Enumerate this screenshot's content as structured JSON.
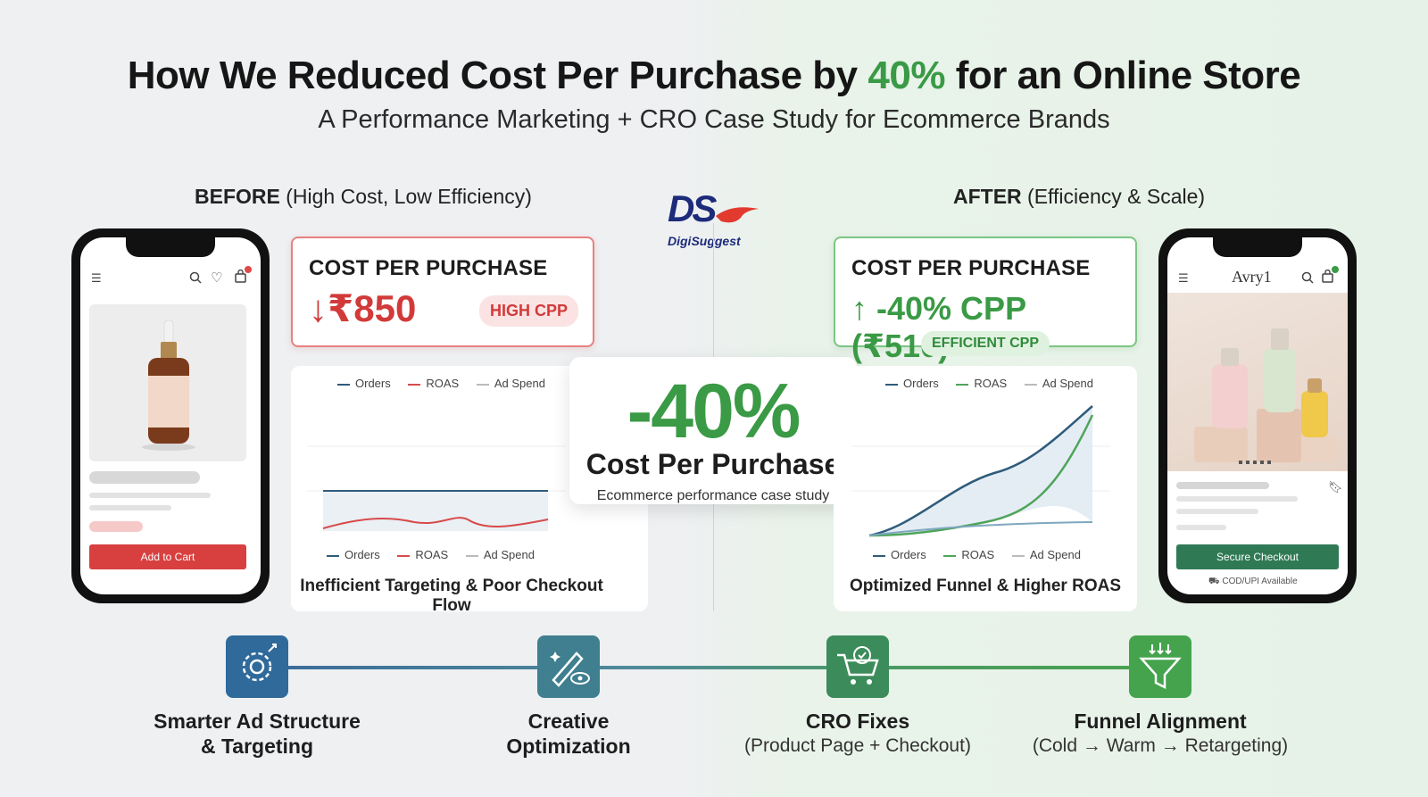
{
  "title": {
    "pre": "How We Reduced Cost Per Purchase by ",
    "highlight": "40%",
    "post": " for an Online Store"
  },
  "subtitle": "A Performance Marketing + CRO Case Study for Ecommerce Brands",
  "logo": {
    "mark": "DS",
    "name": "DigiSuggest"
  },
  "before": {
    "heading_bold": "BEFORE",
    "heading_rest": " (High Cost, Low Efficiency)",
    "cpp_label": "COST PER PURCHASE",
    "cpp_arrow": "↓",
    "cpp_value": "₹850",
    "badge": "HIGH CPP",
    "legend": [
      "Orders",
      "ROAS",
      "Ad Spend"
    ],
    "caption": "Inefficient Targeting & Poor Checkout Flow",
    "phone_button": "Add to Cart"
  },
  "after": {
    "heading_bold": "AFTER",
    "heading_rest": " (Efficiency & Scale)",
    "cpp_label": "COST PER PURCHASE",
    "cpp_arrow": "↑",
    "cpp_value": "-40% CPP (₹510)",
    "badge": "EFFICIENT CPP",
    "legend": [
      "Orders",
      "ROAS",
      "Ad Spend"
    ],
    "caption": "Optimized Funnel & Higher ROAS",
    "phone_brand": "Avry1",
    "phone_button": "Secure Checkout",
    "phone_note": "COD/UPI Available"
  },
  "center": {
    "value": "-40%",
    "label": "Cost Per Purchase",
    "caption": "Ecommerce performance case study"
  },
  "steps": [
    {
      "line1": "Smarter Ad Structure",
      "line2": "& Targeting",
      "icon": "gear-target-icon",
      "color": "#2f6a9a"
    },
    {
      "line1": "Creative",
      "line2": "Optimization",
      "icon": "brush-eye-icon",
      "color": "#3f7f8f"
    },
    {
      "line1": "CRO Fixes",
      "line2": "(Product Page + Checkout)",
      "icon": "cart-check-icon",
      "color": "#3b8c5a"
    },
    {
      "line1": "Funnel Alignment",
      "line2": "(Cold → Warm → Retargeting)",
      "icon": "funnel-icon",
      "color": "#45a34e"
    }
  ],
  "colors": {
    "green": "#3a9a45",
    "red": "#d23a3a",
    "navy": "#1d2b7a"
  }
}
